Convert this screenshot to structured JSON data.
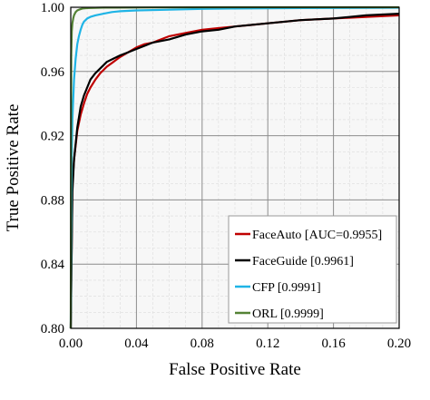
{
  "chart_data": {
    "type": "line",
    "xlabel": "False Positive Rate",
    "ylabel": "True Positive Rate",
    "xlim": [
      0.0,
      0.2
    ],
    "ylim": [
      0.8,
      1.0
    ],
    "x_ticks": [
      0.0,
      0.04,
      0.08,
      0.12,
      0.16,
      0.2
    ],
    "x_tick_labels": [
      "0.00",
      "0.04",
      "0.08",
      "0.12",
      "0.16",
      "0.20"
    ],
    "y_ticks": [
      0.8,
      0.84,
      0.88,
      0.92,
      0.96,
      1.0
    ],
    "y_tick_labels": [
      "0.80",
      "0.84",
      "0.88",
      "0.92",
      "0.96",
      "1.00"
    ],
    "grid": {
      "major": true,
      "minor": true
    },
    "legend_position": "bottom-right",
    "series": [
      {
        "name": "FaceAuto [AUC=0.9955]",
        "color": "#c00000",
        "x": [
          0.0,
          0.001,
          0.002,
          0.004,
          0.006,
          0.008,
          0.01,
          0.012,
          0.015,
          0.018,
          0.022,
          0.026,
          0.03,
          0.035,
          0.04,
          0.045,
          0.05,
          0.055,
          0.06,
          0.07,
          0.08,
          0.09,
          0.1,
          0.11,
          0.12,
          0.14,
          0.16,
          0.18,
          0.2
        ],
        "y": [
          0.8,
          0.89,
          0.905,
          0.923,
          0.933,
          0.94,
          0.946,
          0.95,
          0.955,
          0.959,
          0.963,
          0.966,
          0.969,
          0.972,
          0.975,
          0.977,
          0.978,
          0.98,
          0.982,
          0.984,
          0.986,
          0.987,
          0.988,
          0.989,
          0.99,
          0.992,
          0.993,
          0.994,
          0.995
        ]
      },
      {
        "name": "FaceGuide [0.9961]",
        "color": "#000000",
        "x": [
          0.0,
          0.001,
          0.002,
          0.004,
          0.006,
          0.008,
          0.01,
          0.012,
          0.015,
          0.018,
          0.022,
          0.026,
          0.03,
          0.035,
          0.04,
          0.045,
          0.05,
          0.06,
          0.07,
          0.08,
          0.09,
          0.1,
          0.12,
          0.14,
          0.16,
          0.18,
          0.2
        ],
        "y": [
          0.8,
          0.885,
          0.905,
          0.925,
          0.938,
          0.945,
          0.95,
          0.955,
          0.959,
          0.962,
          0.966,
          0.968,
          0.97,
          0.972,
          0.974,
          0.976,
          0.978,
          0.98,
          0.983,
          0.985,
          0.986,
          0.988,
          0.99,
          0.992,
          0.993,
          0.995,
          0.996
        ]
      },
      {
        "name": "CFP [0.9991]",
        "color": "#1fb4e6",
        "x": [
          0.0,
          0.0005,
          0.001,
          0.002,
          0.003,
          0.004,
          0.005,
          0.006,
          0.007,
          0.008,
          0.01,
          0.012,
          0.015,
          0.02,
          0.025,
          0.03,
          0.04,
          0.06,
          0.08,
          0.1,
          0.14,
          0.2
        ],
        "y": [
          0.8,
          0.9,
          0.93,
          0.955,
          0.968,
          0.977,
          0.982,
          0.986,
          0.989,
          0.991,
          0.993,
          0.994,
          0.995,
          0.996,
          0.997,
          0.9975,
          0.998,
          0.9985,
          0.999,
          0.9992,
          0.9995,
          0.9997
        ]
      },
      {
        "name": "ORL [0.9999]",
        "color": "#548235",
        "x": [
          0.0,
          0.0003,
          0.0006,
          0.001,
          0.0015,
          0.002,
          0.003,
          0.004,
          0.005,
          0.007,
          0.01,
          0.02,
          0.05,
          0.1,
          0.2
        ],
        "y": [
          0.8,
          0.97,
          0.985,
          0.99,
          0.993,
          0.995,
          0.997,
          0.998,
          0.9985,
          0.9992,
          0.9995,
          0.9998,
          0.9999,
          1.0,
          1.0
        ]
      }
    ]
  }
}
